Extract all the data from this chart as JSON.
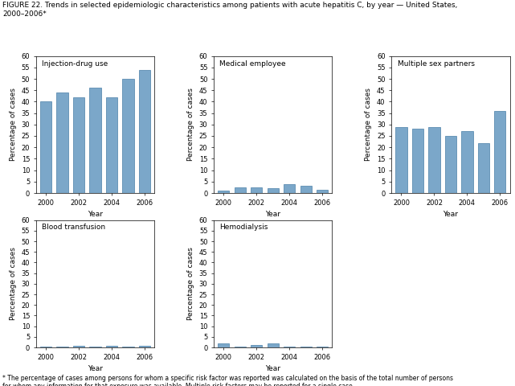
{
  "title": "FIGURE 22. Trends in selected epidemiologic characteristics among patients with acute hepatitis C, by year — United States,\n2000–2006*",
  "footnote": "* The percentage of cases among persons for whom a specific risk factor was reported was calculated on the basis of the total number of persons\nfor whom any information for that exposure was available. Multiple risk factors may be reported for a single case.",
  "years": [
    2000,
    2001,
    2002,
    2003,
    2004,
    2005,
    2006
  ],
  "subplots": [
    {
      "label": "Injection-drug use",
      "values": [
        40,
        44,
        42,
        46,
        42,
        50,
        54
      ]
    },
    {
      "label": "Medical employee",
      "values": [
        1,
        2.5,
        2.5,
        2,
        4,
        3,
        1.5
      ]
    },
    {
      "label": "Multiple sex partners",
      "values": [
        29,
        28,
        29,
        25,
        27,
        22,
        36
      ]
    },
    {
      "label": "Blood transfusion",
      "values": [
        0.5,
        0.5,
        0.8,
        0.5,
        0.8,
        0.5,
        0.8
      ]
    },
    {
      "label": "Hemodialysis",
      "values": [
        2.0,
        0.5,
        1.0,
        2.0,
        0.5,
        0.5,
        0.3
      ]
    }
  ],
  "bar_color": "#7ba7c9",
  "bar_edgecolor": "#4a7fa8",
  "ylim": [
    0,
    60
  ],
  "yticks": [
    0,
    5,
    10,
    15,
    20,
    25,
    30,
    35,
    40,
    45,
    50,
    55,
    60
  ],
  "xtick_positions": [
    0,
    2,
    4,
    6
  ],
  "xtick_labels": [
    "2000",
    "2002",
    "2004",
    "2006"
  ],
  "xlabel": "Year",
  "ylabel": "Percentage of cases",
  "label_fontsize": 6.5,
  "tick_fontsize": 6.0,
  "axis_label_fontsize": 6.5,
  "title_fontsize": 6.5,
  "footnote_fontsize": 5.5
}
